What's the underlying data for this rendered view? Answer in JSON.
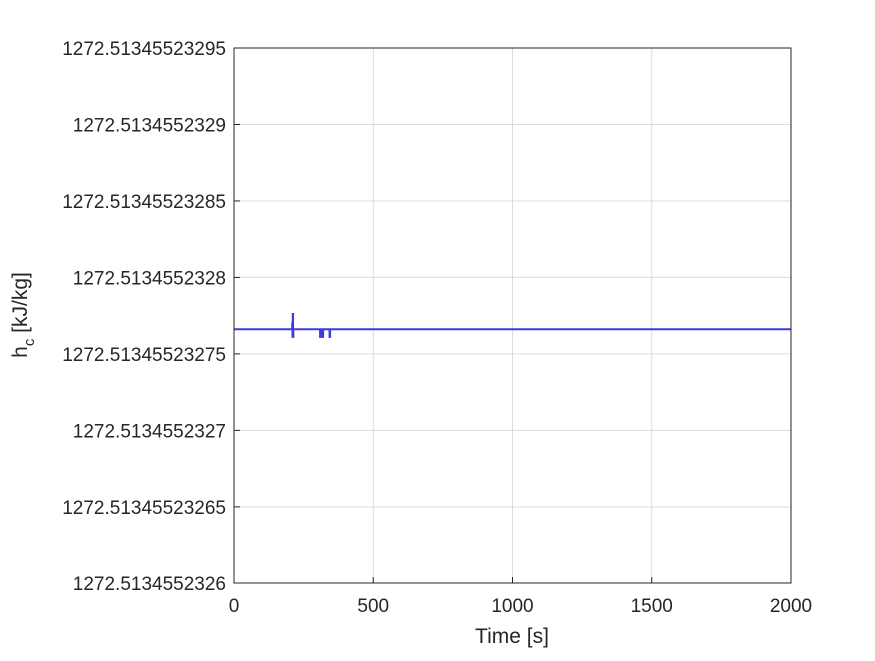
{
  "chart_data": {
    "type": "line",
    "xlabel": "Time [s]",
    "ylabel": {
      "main": "h",
      "subscript": "c",
      "unit": " [kJ/kg]"
    },
    "xlim": [
      0,
      2000
    ],
    "ylim": [
      1272.5134552326,
      1272.51345523295
    ],
    "x_ticks": [
      {
        "value": 0,
        "label": "0"
      },
      {
        "value": 500,
        "label": "500"
      },
      {
        "value": 1000,
        "label": "1000"
      },
      {
        "value": 1500,
        "label": "1500"
      },
      {
        "value": 2000,
        "label": "2000"
      }
    ],
    "y_ticks": [
      {
        "value": 1272.5134552326,
        "label": "1272.5134552326"
      },
      {
        "value": 1272.51345523265,
        "label": "1272.51345523265"
      },
      {
        "value": 1272.5134552327,
        "label": "1272.5134552327"
      },
      {
        "value": 1272.51345523275,
        "label": "1272.51345523275"
      },
      {
        "value": 1272.5134552328,
        "label": "1272.5134552328"
      },
      {
        "value": 1272.51345523285,
        "label": "1272.51345523285"
      },
      {
        "value": 1272.5134552329,
        "label": "1272.5134552329"
      },
      {
        "value": 1272.51345523295,
        "label": "1272.51345523295"
      }
    ],
    "grid": true,
    "series": [
      {
        "color": "#3b3bdc",
        "x": [
          0,
          209,
          209,
          210,
          210,
          211,
          211,
          212,
          212,
          213,
          213,
          214,
          214,
          309,
          309,
          311,
          311,
          313,
          313,
          320,
          320,
          322,
          322,
          343,
          343,
          345,
          345,
          2000
        ],
        "y": [
          1272.513455232766,
          1272.513455232766,
          1272.51345523277,
          1272.51345523277,
          1272.513455232761,
          1272.513455232761,
          1272.513455232776,
          1272.513455232776,
          1272.513455232761,
          1272.513455232761,
          1272.513455232766,
          1272.513455232766,
          1272.513455232766,
          1272.513455232766,
          1272.513455232761,
          1272.513455232761,
          1272.513455232766,
          1272.513455232766,
          1272.513455232761,
          1272.513455232761,
          1272.513455232766,
          1272.513455232766,
          1272.513455232766,
          1272.513455232766,
          1272.513455232761,
          1272.513455232761,
          1272.513455232766,
          1272.513455232766
        ]
      }
    ]
  }
}
